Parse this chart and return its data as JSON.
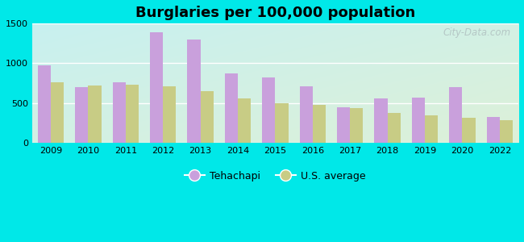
{
  "years": [
    2009,
    2010,
    2011,
    2012,
    2013,
    2014,
    2015,
    2016,
    2017,
    2018,
    2019,
    2020,
    2022
  ],
  "tehachapi": [
    970,
    700,
    760,
    1390,
    1300,
    870,
    820,
    710,
    450,
    560,
    570,
    700,
    325
  ],
  "us_average": [
    760,
    720,
    730,
    710,
    650,
    560,
    500,
    475,
    440,
    375,
    340,
    310,
    280
  ],
  "title": "Burglaries per 100,000 population",
  "tehachapi_color": "#c9a0dc",
  "us_avg_color": "#c8cc85",
  "ylim": [
    0,
    1500
  ],
  "yticks": [
    0,
    500,
    1000,
    1500
  ],
  "outer_bg": "#00e8e8",
  "legend_tehachapi": "Tehachapi",
  "legend_us": "U.S. average",
  "watermark": "City-Data.com",
  "bg_color_topleft": "#d8f5f5",
  "bg_color_bottomright": "#e8f5e0",
  "bar_width": 0.35
}
